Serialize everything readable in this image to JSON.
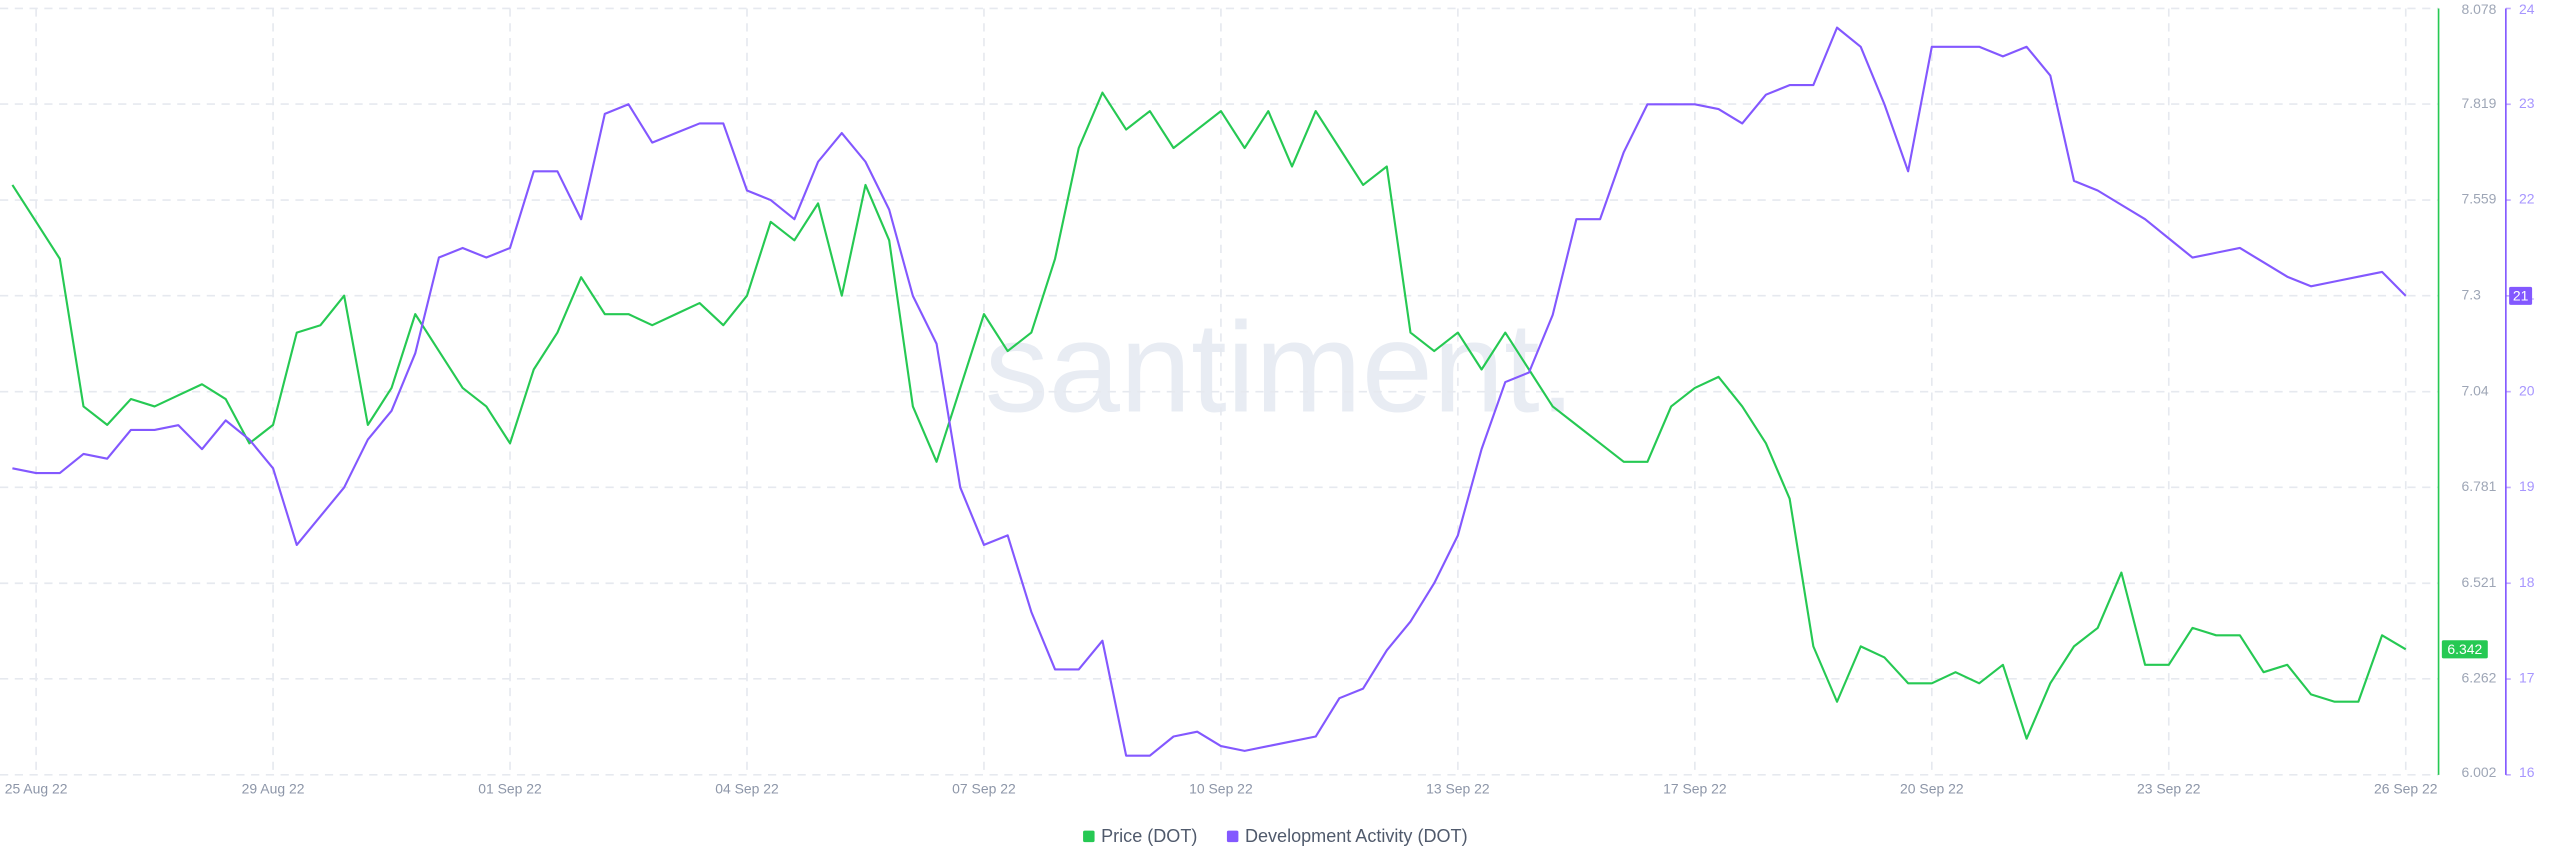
{
  "chart_data": {
    "type": "line",
    "watermark": "santiment.",
    "categories": [
      null,
      "25 Aug 22",
      null,
      null,
      null,
      null,
      null,
      null,
      null,
      null,
      null,
      "29 Aug 22",
      null,
      null,
      null,
      null,
      null,
      null,
      null,
      null,
      null,
      "01 Sep 22",
      null,
      null,
      null,
      null,
      null,
      null,
      null,
      null,
      null,
      "04 Sep 22",
      null,
      null,
      null,
      null,
      null,
      null,
      null,
      null,
      null,
      "07 Sep 22",
      null,
      null,
      null,
      null,
      null,
      null,
      null,
      null,
      null,
      "10 Sep 22",
      null,
      null,
      null,
      null,
      null,
      null,
      null,
      null,
      null,
      "13 Sep 22",
      null,
      null,
      null,
      null,
      null,
      null,
      null,
      null,
      null,
      "17 Sep 22",
      null,
      null,
      null,
      null,
      null,
      null,
      null,
      null,
      null,
      "20 Sep 22",
      null,
      null,
      null,
      null,
      null,
      null,
      null,
      null,
      null,
      "23 Sep 22",
      null,
      null,
      null,
      null,
      null,
      null,
      null,
      null,
      null,
      "26 Sep 22"
    ],
    "series": [
      {
        "name": "Price (DOT)",
        "color": "#26c953",
        "axis": "y",
        "current_value": 6.342,
        "values": [
          7.6,
          7.5,
          7.4,
          7.0,
          6.95,
          7.02,
          7.0,
          7.03,
          7.06,
          7.02,
          6.9,
          6.95,
          7.2,
          7.22,
          7.3,
          6.95,
          7.05,
          7.25,
          7.15,
          7.05,
          7.0,
          6.9,
          7.1,
          7.2,
          7.35,
          7.25,
          7.25,
          7.22,
          7.25,
          7.28,
          7.22,
          7.3,
          7.5,
          7.45,
          7.55,
          7.3,
          7.6,
          7.45,
          7.0,
          6.85,
          7.05,
          7.25,
          7.15,
          7.2,
          7.4,
          7.7,
          7.85,
          7.75,
          7.8,
          7.7,
          7.75,
          7.8,
          7.7,
          7.8,
          7.65,
          7.8,
          7.7,
          7.6,
          7.65,
          7.2,
          7.15,
          7.2,
          7.1,
          7.2,
          7.1,
          7.0,
          6.95,
          6.9,
          6.85,
          6.85,
          7.0,
          7.05,
          7.08,
          7.0,
          6.9,
          6.75,
          6.35,
          6.2,
          6.35,
          6.32,
          6.25,
          6.25,
          6.28,
          6.25,
          6.3,
          6.1,
          6.25,
          6.35,
          6.4,
          6.55,
          6.3,
          6.3,
          6.4,
          6.38,
          6.38,
          6.28,
          6.3,
          6.22,
          6.2,
          6.2,
          6.38,
          6.342
        ]
      },
      {
        "name": "Development Activity (DOT)",
        "color": "#8358ff",
        "axis": "y2",
        "current_value": 21,
        "values": [
          19.2,
          19.15,
          19.15,
          19.35,
          19.3,
          19.6,
          19.6,
          19.65,
          19.4,
          19.7,
          19.5,
          19.2,
          18.4,
          18.7,
          19.0,
          19.5,
          19.8,
          20.4,
          21.4,
          21.5,
          21.4,
          21.5,
          22.3,
          22.3,
          21.8,
          22.9,
          23.0,
          22.6,
          22.7,
          22.8,
          22.8,
          22.1,
          22.0,
          21.8,
          22.4,
          22.7,
          22.4,
          21.9,
          21.0,
          20.5,
          19.0,
          18.4,
          18.5,
          17.7,
          17.1,
          17.1,
          17.4,
          16.2,
          16.2,
          16.4,
          16.45,
          16.3,
          16.25,
          16.3,
          16.35,
          16.4,
          16.8,
          16.9,
          17.3,
          17.6,
          18.0,
          18.5,
          19.4,
          20.1,
          20.2,
          20.8,
          21.8,
          21.8,
          22.5,
          23.0,
          23.0,
          23.0,
          22.95,
          22.8,
          23.1,
          23.2,
          23.2,
          23.8,
          23.6,
          23.0,
          22.3,
          23.6,
          23.6,
          23.6,
          23.5,
          23.6,
          23.3,
          22.2,
          22.1,
          21.95,
          21.8,
          21.6,
          21.4,
          21.45,
          21.5,
          21.35,
          21.2,
          21.1,
          21.15,
          21.2,
          21.25,
          21
        ]
      }
    ],
    "ylim": [
      6.002,
      8.078
    ],
    "yticks": [
      6.002,
      6.262,
      6.521,
      6.781,
      7.04,
      7.3,
      7.559,
      7.819,
      8.078
    ],
    "y2lim": [
      16,
      24
    ],
    "y2ticks": [
      16,
      17,
      18,
      19,
      20,
      21,
      22,
      23,
      24
    ],
    "grid": true,
    "legend": "bottom"
  }
}
